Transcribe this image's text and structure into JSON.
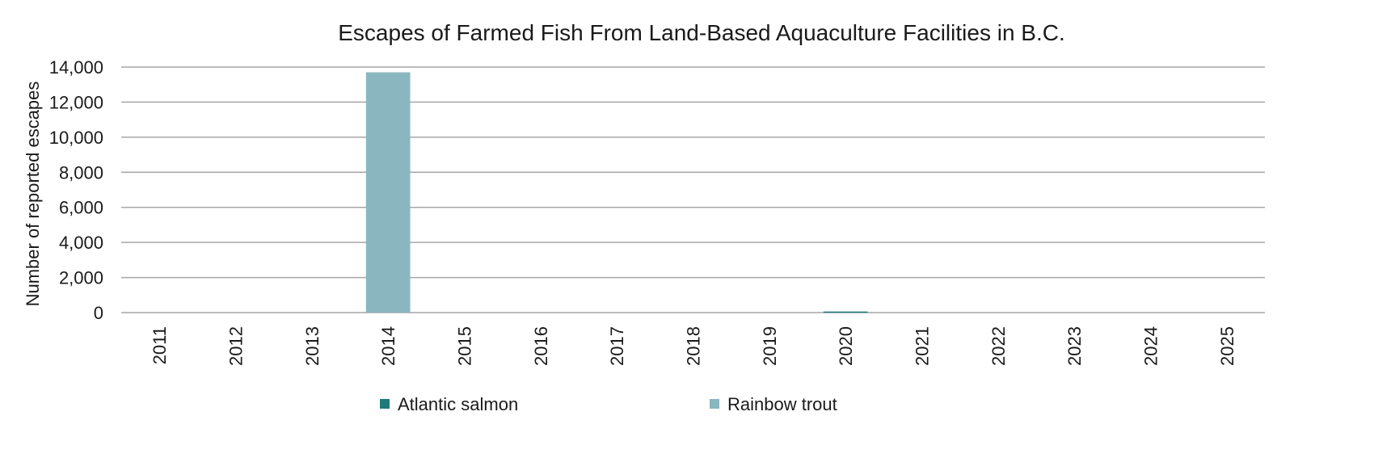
{
  "chart_data": {
    "type": "bar",
    "title": "Escapes of Farmed Fish From Land-Based Aquaculture Facilities in B.C.",
    "xlabel": "",
    "ylabel": "Number of reported escapes",
    "ylim": [
      0,
      14000
    ],
    "yticks": [
      0,
      2000,
      4000,
      6000,
      8000,
      10000,
      12000,
      14000
    ],
    "ytick_labels": [
      "0",
      "2,000",
      "4,000",
      "6,000",
      "8,000",
      "10,000",
      "12,000",
      "14,000"
    ],
    "categories": [
      "2011",
      "2012",
      "2013",
      "2014",
      "2015",
      "2016",
      "2017",
      "2018",
      "2019",
      "2020",
      "2021",
      "2022",
      "2023",
      "2024",
      "2025"
    ],
    "series": [
      {
        "name": "Atlantic salmon",
        "color": "#1f7a78",
        "values": [
          0,
          0,
          0,
          0,
          0,
          0,
          0,
          0,
          0,
          60,
          0,
          0,
          0,
          0,
          0
        ]
      },
      {
        "name": "Rainbow trout",
        "color": "#8ab6bf",
        "values": [
          0,
          0,
          0,
          13700,
          0,
          0,
          0,
          0,
          0,
          0,
          0,
          0,
          0,
          0,
          0
        ]
      }
    ],
    "stacked": true,
    "grid": true,
    "legend_position": "bottom"
  }
}
